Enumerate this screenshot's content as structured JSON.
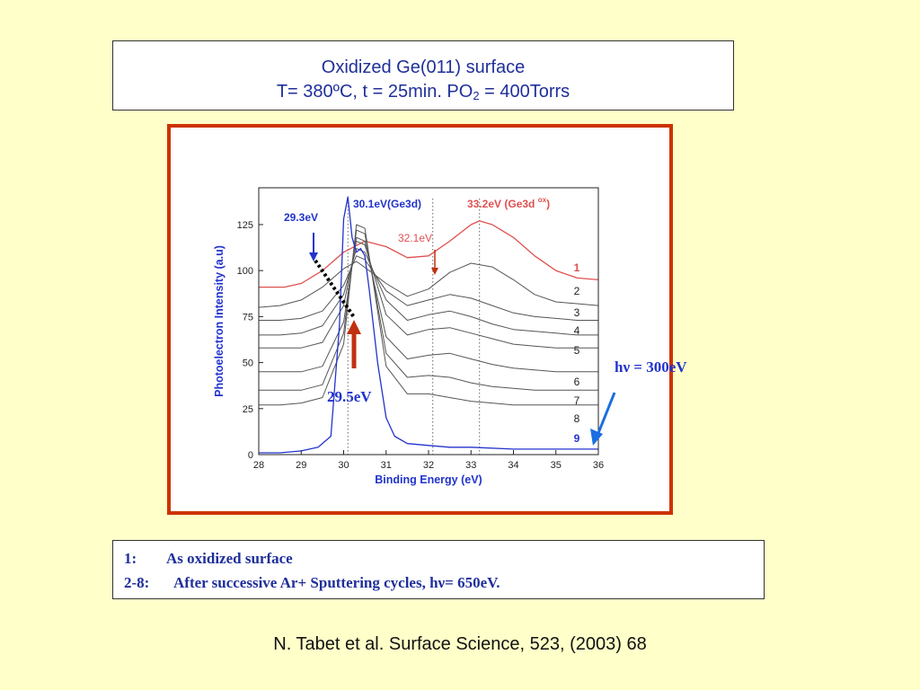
{
  "title": {
    "line1": "Oxidized Ge(011) surface",
    "line2_pre": "T= 380ºC, t = 25min.  PO",
    "line2_sub": "2",
    "line2_post": " = 400Torrs"
  },
  "notes": [
    {
      "key": "1:",
      "text": "As oxidized surface"
    },
    {
      "key": "2-8:",
      "text": "After successive Ar+ Sputtering cycles,  hν=  650eV."
    }
  ],
  "citation": "N. Tabet et al.  Surface Science, 523, (2003) 68",
  "colors": {
    "ox": "#e05050",
    "blue": "#2233cc",
    "gray": "#555555",
    "arrow": "#c03010",
    "callout": "#1a6ee0"
  },
  "chart_data": {
    "type": "line",
    "xlabel": "Binding Energy (eV)",
    "ylabel": "Photoelectron Intensity (a.u)",
    "xlim": [
      28,
      36
    ],
    "ylim": [
      0,
      145
    ],
    "xticks": [
      28,
      29,
      30,
      31,
      32,
      33,
      34,
      35,
      36
    ],
    "yticks": [
      0,
      25,
      50,
      75,
      100,
      125
    ],
    "reference_lines_x": [
      30.1,
      32.1,
      33.2
    ],
    "annotations": {
      "ge3d": "30.1eV(Ge3d)",
      "ox_pre": "33.2eV (Ge3d ",
      "ox_sup": "ox",
      "ox_post": ")",
      "p293": "29.3eV",
      "p321": "32.1eV",
      "p295": "29.5eV",
      "hv": "hν = 300eV"
    },
    "series": [
      {
        "name": "1",
        "color": "#e05050",
        "x": [
          28.0,
          28.6,
          29.0,
          29.5,
          30.0,
          30.5,
          31.0,
          31.5,
          32.0,
          32.5,
          33.0,
          33.2,
          33.5,
          34.0,
          34.5,
          35.0,
          35.5,
          36.0
        ],
        "y": [
          91,
          91,
          93,
          100,
          110,
          116,
          113,
          107,
          108,
          116,
          125,
          127,
          125,
          118,
          108,
          100,
          96,
          95
        ]
      },
      {
        "name": "2",
        "color": "#555555",
        "x": [
          28.0,
          28.5,
          29.0,
          29.5,
          30.0,
          30.3,
          30.6,
          31.0,
          31.5,
          32.0,
          32.5,
          33.0,
          33.5,
          34.0,
          34.5,
          35.0,
          35.5,
          36.0
        ],
        "y": [
          80,
          81,
          84,
          91,
          101,
          105,
          100,
          93,
          86,
          90,
          99,
          104,
          102,
          95,
          87,
          83,
          82,
          81
        ]
      },
      {
        "name": "3",
        "color": "#555555",
        "x": [
          28.0,
          28.5,
          29.0,
          29.5,
          30.0,
          30.3,
          30.5,
          31.0,
          31.5,
          32.0,
          32.5,
          33.0,
          33.5,
          34.0,
          34.5,
          35.0,
          35.5,
          36.0
        ],
        "y": [
          73,
          73,
          74,
          78,
          92,
          108,
          106,
          89,
          81,
          84,
          87,
          85,
          81,
          77,
          75,
          74,
          73,
          73
        ]
      },
      {
        "name": "4",
        "color": "#555555",
        "x": [
          28.0,
          28.5,
          29.0,
          29.5,
          30.0,
          30.3,
          30.5,
          31.0,
          31.5,
          32.0,
          32.5,
          33.0,
          33.5,
          34.0,
          34.5,
          35.0,
          35.5,
          36.0
        ],
        "y": [
          65,
          65,
          66,
          70,
          87,
          112,
          110,
          84,
          73,
          76,
          78,
          75,
          71,
          68,
          67,
          66,
          65,
          65
        ]
      },
      {
        "name": "5",
        "color": "#555555",
        "x": [
          28.0,
          28.5,
          29.0,
          29.5,
          30.0,
          30.3,
          30.5,
          31.0,
          31.5,
          32.0,
          32.5,
          33.0,
          33.5,
          34.0,
          34.5,
          35.0,
          35.5,
          36.0
        ],
        "y": [
          58,
          58,
          58,
          61,
          81,
          116,
          114,
          76,
          65,
          68,
          69,
          66,
          63,
          60,
          59,
          58,
          58,
          58
        ]
      },
      {
        "name": "6",
        "color": "#555555",
        "x": [
          28.0,
          28.5,
          29.0,
          29.5,
          30.0,
          30.3,
          30.5,
          31.0,
          31.5,
          32.0,
          32.5,
          33.0,
          33.5,
          34.0,
          34.5,
          35.0,
          35.5,
          36.0
        ],
        "y": [
          45,
          45,
          45,
          48,
          72,
          118,
          116,
          64,
          52,
          54,
          55,
          52,
          49,
          47,
          46,
          45,
          45,
          45
        ]
      },
      {
        "name": "7",
        "color": "#555555",
        "x": [
          28.0,
          28.5,
          29.0,
          29.5,
          30.0,
          30.3,
          30.5,
          31.0,
          31.5,
          32.0,
          32.5,
          33.0,
          33.5,
          34.0,
          34.5,
          35.0,
          35.5,
          36.0
        ],
        "y": [
          35,
          35,
          35,
          38,
          66,
          122,
          120,
          55,
          42,
          43,
          42,
          39,
          37,
          36,
          35,
          35,
          35,
          35
        ]
      },
      {
        "name": "8",
        "color": "#555555",
        "x": [
          28.0,
          28.5,
          29.0,
          29.5,
          30.0,
          30.3,
          30.5,
          31.0,
          31.5,
          32.0,
          32.5,
          33.0,
          33.5,
          34.0,
          34.5,
          35.0,
          35.5,
          36.0
        ],
        "y": [
          27,
          27,
          28,
          31,
          60,
          125,
          123,
          48,
          33,
          33,
          31,
          29,
          28,
          27,
          27,
          27,
          27,
          27
        ]
      },
      {
        "name": "9",
        "color": "#2233cc",
        "x": [
          28.0,
          28.5,
          29.0,
          29.4,
          29.7,
          29.9,
          30.0,
          30.1,
          30.2,
          30.3,
          30.4,
          30.5,
          30.6,
          30.8,
          31.0,
          31.2,
          31.5,
          32.0,
          32.5,
          33.0,
          34.0,
          35.0,
          36.0
        ],
        "y": [
          1,
          1,
          2,
          4,
          10,
          70,
          128,
          140,
          118,
          110,
          112,
          108,
          90,
          50,
          20,
          10,
          6,
          5,
          4,
          4,
          3,
          3,
          3
        ]
      }
    ]
  }
}
